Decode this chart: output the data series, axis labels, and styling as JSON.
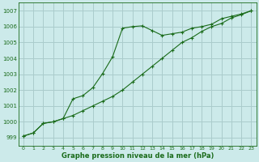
{
  "title": "Graphe pression niveau de la mer (hPa)",
  "background_color": "#cceaea",
  "grid_color": "#aacccc",
  "line_color": "#1a6b1a",
  "xlim": [
    -0.5,
    23.5
  ],
  "ylim": [
    998.5,
    1007.5
  ],
  "yticks": [
    999,
    1000,
    1001,
    1002,
    1003,
    1004,
    1005,
    1006,
    1007
  ],
  "xticks": [
    0,
    1,
    2,
    3,
    4,
    5,
    6,
    7,
    8,
    9,
    10,
    11,
    12,
    13,
    14,
    15,
    16,
    17,
    18,
    19,
    20,
    21,
    22,
    23
  ],
  "line1_x": [
    0,
    1,
    2,
    3,
    4,
    5,
    6,
    7,
    8,
    9,
    10,
    11,
    12,
    13,
    14,
    15,
    16,
    17,
    18,
    19,
    20,
    21,
    22,
    23
  ],
  "line1_y": [
    999.1,
    999.3,
    999.9,
    1000.0,
    1000.2,
    1000.4,
    1000.7,
    1001.0,
    1001.3,
    1001.6,
    1002.0,
    1002.5,
    1003.0,
    1003.5,
    1004.0,
    1004.5,
    1005.0,
    1005.3,
    1005.7,
    1006.0,
    1006.2,
    1006.55,
    1006.75,
    1007.0
  ],
  "line2_x": [
    0,
    1,
    2,
    3,
    4,
    5,
    6,
    7,
    8,
    9,
    10,
    11,
    12,
    13,
    14,
    15,
    16,
    17,
    18,
    19,
    20,
    21,
    22,
    23
  ],
  "line2_y": [
    999.1,
    999.3,
    999.9,
    1000.0,
    1000.2,
    1001.45,
    1001.65,
    1002.15,
    1003.05,
    1004.1,
    1005.9,
    1006.0,
    1006.05,
    1005.75,
    1005.45,
    1005.55,
    1005.65,
    1005.9,
    1006.0,
    1006.15,
    1006.5,
    1006.65,
    1006.8,
    1007.0
  ]
}
